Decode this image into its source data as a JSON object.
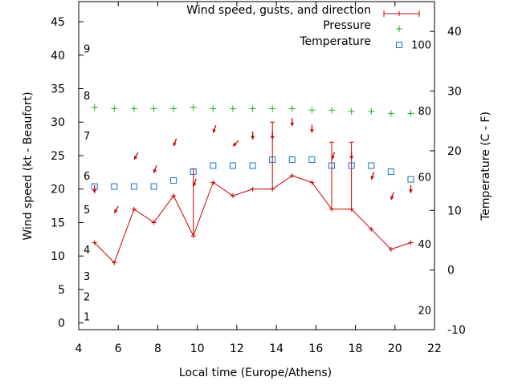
{
  "chart_data": {
    "type": "line",
    "xlabel": "Local time (Europe/Athens)",
    "ylabel": "Wind speed (kt - Beaufort)",
    "y2label": "Temperature (C - F)",
    "xlim": [
      4,
      22
    ],
    "ylim": [
      -1,
      48
    ],
    "y2lim": [
      -10,
      45
    ],
    "x_ticks": [
      4,
      6,
      8,
      10,
      12,
      14,
      16,
      18,
      20,
      22
    ],
    "y_ticks": [
      0,
      5,
      10,
      15,
      20,
      25,
      30,
      35,
      40,
      45
    ],
    "y2_ticks": [
      -10,
      0,
      10,
      20,
      30,
      40
    ],
    "beaufort_scale": [
      {
        "label": "1",
        "kt": 1
      },
      {
        "label": "2",
        "kt": 4
      },
      {
        "label": "3",
        "kt": 7
      },
      {
        "label": "4",
        "kt": 11
      },
      {
        "label": "5",
        "kt": 17
      },
      {
        "label": "6",
        "kt": 22
      },
      {
        "label": "7",
        "kt": 28
      },
      {
        "label": "8",
        "kt": 34
      },
      {
        "label": "9",
        "kt": 41
      }
    ],
    "fahrenheit_scale": [
      {
        "label": "20",
        "c": -6.7
      },
      {
        "label": "40",
        "c": 4.4
      },
      {
        "label": "60",
        "c": 15.6
      },
      {
        "label": "80",
        "c": 26.7
      },
      {
        "label": "100",
        "c": 37.8
      }
    ],
    "legend": [
      {
        "name": "Wind speed, gusts, and direction",
        "color": "#cc0000"
      },
      {
        "name": "Pressure",
        "color": "#22aa22"
      },
      {
        "name": "Temperature",
        "color": "#1a6fcc"
      }
    ],
    "legend_position": "top-right",
    "series": [
      {
        "name": "Wind speed, gusts, and direction",
        "color": "#cc0000",
        "x": [
          4.8,
          5.8,
          6.8,
          7.8,
          8.8,
          9.8,
          10.8,
          11.8,
          12.8,
          13.8,
          14.8,
          15.8,
          16.8,
          17.8,
          18.8,
          19.8,
          20.8
        ],
        "y": [
          12,
          9,
          17,
          15,
          19,
          13,
          21,
          19,
          20,
          20,
          22,
          21,
          17,
          17,
          14,
          11,
          12
        ],
        "gust": [
          null,
          null,
          null,
          null,
          null,
          23,
          null,
          null,
          null,
          30,
          null,
          null,
          27,
          27,
          null,
          null,
          null
        ],
        "direction_deg": [
          0,
          30,
          30,
          20,
          20,
          20,
          20,
          45,
          0,
          0,
          0,
          0,
          20,
          0,
          20,
          20,
          0
        ]
      },
      {
        "name": "Pressure",
        "color": "#22aa22",
        "x": [
          4.8,
          5.8,
          6.8,
          7.8,
          8.8,
          9.8,
          10.8,
          11.8,
          12.8,
          13.8,
          14.8,
          15.8,
          16.8,
          17.8,
          18.8,
          19.8,
          20.8
        ],
        "y": [
          32.2,
          32.0,
          32.0,
          32.0,
          32.0,
          32.2,
          32.0,
          32.0,
          32.0,
          32.0,
          32.0,
          31.8,
          31.8,
          31.6,
          31.6,
          31.3,
          31.3
        ]
      },
      {
        "name": "Temperature",
        "color": "#1a6fcc",
        "axis": "right",
        "x": [
          4.8,
          5.8,
          6.8,
          7.8,
          8.8,
          9.8,
          10.8,
          11.8,
          12.8,
          13.8,
          14.8,
          15.8,
          16.8,
          17.8,
          18.8,
          19.8,
          20.8
        ],
        "y": [
          14,
          14,
          14,
          14,
          15,
          16.5,
          17.5,
          17.5,
          17.5,
          18.5,
          18.5,
          18.5,
          17.5,
          17.5,
          17.5,
          16.5,
          15.2
        ]
      }
    ]
  }
}
